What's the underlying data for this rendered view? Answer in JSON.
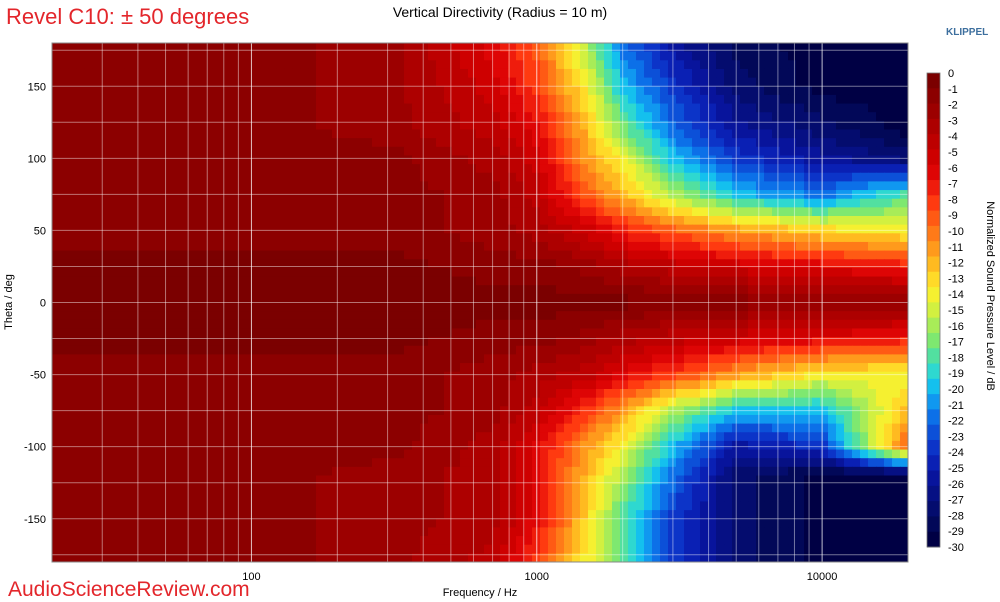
{
  "header": {
    "left_title": "Revel C10: ± 50 degrees",
    "center_title": "Vertical Directivity (Radius = 10 m)",
    "brand": "KLIPPEL"
  },
  "footer": {
    "watermark": "AudioScienceReview.com"
  },
  "chart_data": {
    "type": "heatmap",
    "title": "Vertical Directivity (Radius = 10 m)",
    "xlabel": "Frequency / Hz",
    "ylabel": "Theta / deg",
    "colorbar_label": "Normalized Sound Pressure Level / dB",
    "x_scale": "log",
    "xlim": [
      20,
      20000
    ],
    "ylim": [
      -180,
      180
    ],
    "x_ticks": [
      {
        "value": 100,
        "label": "100"
      },
      {
        "value": 1000,
        "label": "1000"
      },
      {
        "value": 10000,
        "label": "10000"
      }
    ],
    "y_ticks": [
      {
        "value": 150,
        "label": "150"
      },
      {
        "value": 100,
        "label": "100"
      },
      {
        "value": 50,
        "label": "50"
      },
      {
        "value": 0,
        "label": "0"
      },
      {
        "value": -50,
        "label": "-50"
      },
      {
        "value": -100,
        "label": "-100"
      },
      {
        "value": -150,
        "label": "-150"
      }
    ],
    "colorbar_ticks": [
      "0",
      "-1",
      "-2",
      "-3",
      "-4",
      "-5",
      "-6",
      "-7",
      "-8",
      "-9",
      "-10",
      "-11",
      "-12",
      "-13",
      "-14",
      "-15",
      "-16",
      "-17",
      "-18",
      "-19",
      "-20",
      "-21",
      "-22",
      "-23",
      "-24",
      "-25",
      "-26",
      "-27",
      "-28",
      "-29",
      "-30"
    ],
    "colorbar_colors": [
      "#7b0000",
      "#8c0000",
      "#9c0000",
      "#ad0000",
      "#bd0000",
      "#ce0000",
      "#de0505",
      "#ef1c0c",
      "#ff3a10",
      "#ff5a14",
      "#ff7a18",
      "#ff9a1c",
      "#ffba20",
      "#ffda28",
      "#f5f030",
      "#d2f040",
      "#a8ec58",
      "#7ee870",
      "#52e0a0",
      "#2ed8d0",
      "#14c0ee",
      "#1098f0",
      "#0c70e8",
      "#0c50d8",
      "#0c34c8",
      "#0a20b4",
      "#08149c",
      "#061084",
      "#040c6e",
      "#020858",
      "#000044"
    ],
    "data": {
      "description_free": true,
      "theta": [
        -180,
        -150,
        -120,
        -100,
        -75,
        -50,
        -25,
        0,
        25,
        50,
        75,
        100,
        120,
        150,
        180
      ],
      "freq": [
        20,
        100,
        300,
        700,
        1000,
        1500,
        2000,
        3000,
        5000,
        10000,
        20000
      ],
      "z": [
        [
          -1,
          -1,
          -2,
          -4,
          -8,
          -14,
          -18,
          -24,
          -28,
          -30,
          -30
        ],
        [
          -1,
          -1,
          -2,
          -3,
          -6,
          -13,
          -18,
          -24,
          -28,
          -30,
          -30
        ],
        [
          -1,
          -1,
          -2,
          -3,
          -6,
          -12,
          -16,
          -22,
          -28,
          -30,
          -30
        ],
        [
          -1,
          -1,
          -1,
          -3,
          -6,
          -11,
          -14,
          -20,
          -26,
          -24,
          -9
        ],
        [
          -1,
          -1,
          -1,
          -2,
          -4,
          -8,
          -11,
          -16,
          -20,
          -20,
          -12
        ],
        [
          -1,
          -1,
          -1,
          -2,
          -3,
          -4,
          -6,
          -8,
          -11,
          -14,
          -14
        ],
        [
          0,
          0,
          0,
          -1,
          -1,
          -2,
          -3,
          -4,
          -5,
          -6,
          -7
        ],
        [
          0,
          0,
          0,
          0,
          0,
          0,
          0,
          -1,
          -1,
          -1,
          -1
        ],
        [
          0,
          0,
          0,
          -1,
          -1,
          -2,
          -3,
          -4,
          -5,
          -6,
          -7
        ],
        [
          -1,
          -1,
          -1,
          -2,
          -3,
          -5,
          -7,
          -9,
          -11,
          -13,
          -14
        ],
        [
          -1,
          -1,
          -1,
          -2,
          -4,
          -9,
          -12,
          -16,
          -20,
          -22,
          -18
        ],
        [
          -1,
          -1,
          -1,
          -3,
          -5,
          -11,
          -14,
          -20,
          -24,
          -26,
          -28
        ],
        [
          -1,
          -1,
          -2,
          -4,
          -6,
          -12,
          -17,
          -22,
          -26,
          -28,
          -30
        ],
        [
          -1,
          -1,
          -2,
          -5,
          -8,
          -14,
          -20,
          -24,
          -28,
          -30,
          -30
        ],
        [
          -1,
          -1,
          -2,
          -6,
          -9,
          -16,
          -22,
          -26,
          -29,
          -30,
          -30
        ]
      ]
    }
  }
}
